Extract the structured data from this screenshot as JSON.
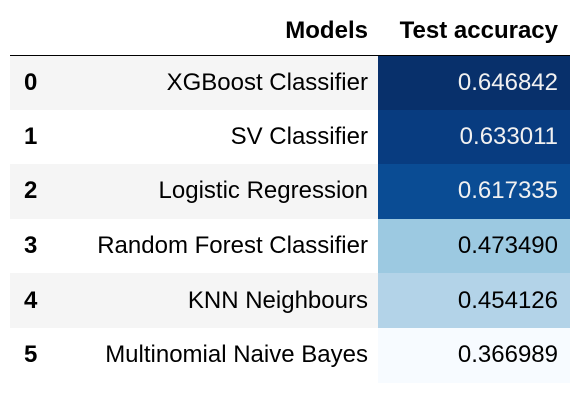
{
  "table": {
    "columns": [
      "",
      "Models",
      "Test accuracy"
    ],
    "rows": [
      {
        "index": "0",
        "model": "XGBoost Classifier",
        "accuracy": "0.646842",
        "bg": "#08306b",
        "fg": "#f1f1f1"
      },
      {
        "index": "1",
        "model": "SV Classifier",
        "accuracy": "0.633011",
        "bg": "#083c80",
        "fg": "#f1f1f1"
      },
      {
        "index": "2",
        "model": "Logistic Regression",
        "accuracy": "0.617335",
        "bg": "#0a4c94",
        "fg": "#f1f1f1"
      },
      {
        "index": "3",
        "model": "Random Forest Classifier",
        "accuracy": "0.473490",
        "bg": "#9cc9e1",
        "fg": "#000000"
      },
      {
        "index": "4",
        "model": "KNN Neighbours",
        "accuracy": "0.454126",
        "bg": "#b3d3e8",
        "fg": "#000000"
      },
      {
        "index": "5",
        "model": "Multinomial Naive Bayes",
        "accuracy": "0.366989",
        "bg": "#f7fbff",
        "fg": "#000000"
      }
    ]
  }
}
